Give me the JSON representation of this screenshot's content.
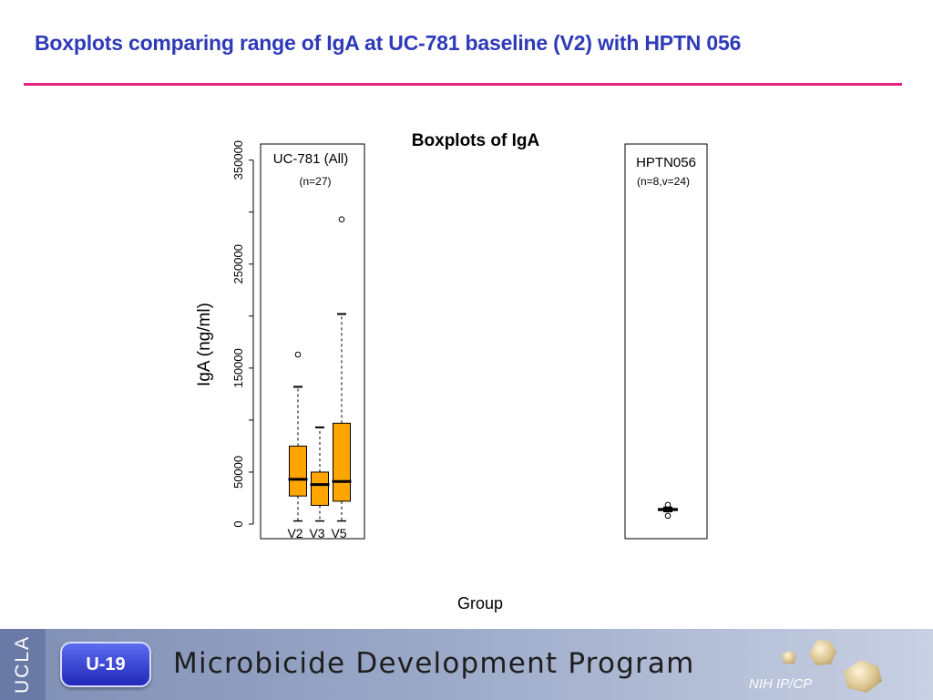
{
  "slide": {
    "title": "Boxplots comparing range of IgA at UC-781 baseline (V2) with HPTN 056"
  },
  "footer": {
    "ucla_label": "UCLA",
    "badge_label": "U-19",
    "program_name": "Microbicide Development Program",
    "nih_label": "NIH IP/CP",
    "colors": {
      "bar": "#8c9cc0",
      "badge": "#2a30c0"
    }
  },
  "chart_data": {
    "type": "boxplot",
    "title": "Boxplots of IgA",
    "xlabel": "Group",
    "ylabel": "IgA (ng/ml)",
    "ylim": [
      0,
      365000
    ],
    "yticks": [
      0,
      50000,
      100000,
      150000,
      200000,
      250000,
      300000,
      350000
    ],
    "ytick_labels": [
      "0",
      "50000",
      "",
      "150000",
      "",
      "250000",
      "",
      "350000"
    ],
    "box_color": "#ffa500",
    "panels": [
      {
        "label": "UC-781 (All)",
        "sublabel": "(n=27)",
        "boxes": [
          {
            "name": "V2",
            "whisker_low": 3000,
            "q1": 27000,
            "median": 43000,
            "q3": 75000,
            "whisker_high": 132000,
            "outliers": [
              163000
            ]
          },
          {
            "name": "V3",
            "whisker_low": 3000,
            "q1": 18000,
            "median": 38000,
            "q3": 50000,
            "whisker_high": 93000,
            "outliers": []
          },
          {
            "name": "V5",
            "whisker_low": 3000,
            "q1": 22000,
            "median": 41000,
            "q3": 97000,
            "whisker_high": 202000,
            "outliers": [
              293000
            ]
          }
        ]
      },
      {
        "label": "HPTN056",
        "sublabel": "(n=8,v=24)",
        "boxes": [
          {
            "name": "",
            "whisker_low": 12000,
            "q1": 13000,
            "median": 14000,
            "q3": 15000,
            "whisker_high": 16000,
            "outliers": [
              8000,
              18500
            ]
          }
        ]
      }
    ]
  }
}
